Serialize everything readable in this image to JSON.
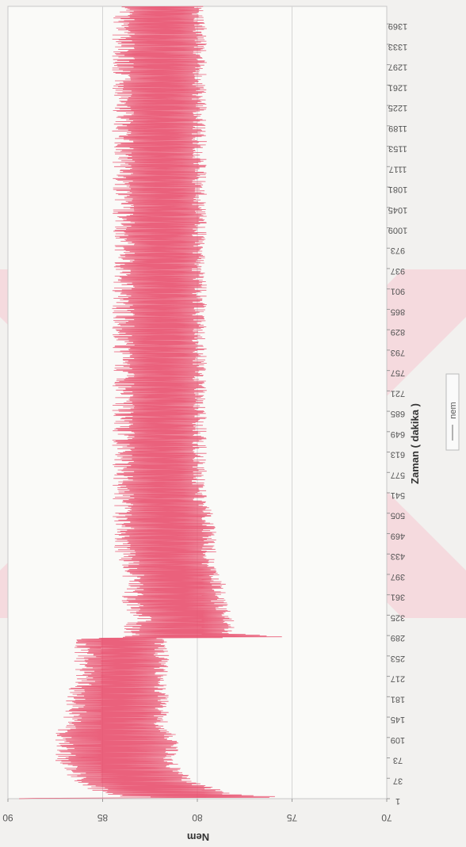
{
  "chart_data": {
    "type": "line",
    "orientation": "rotated-90-clockwise",
    "xlabel": "Zaman ( dakika )",
    "ylabel": "Nem",
    "ylim": [
      70,
      90
    ],
    "yticks": [
      70,
      75,
      80,
      85,
      90
    ],
    "xticks": [
      1,
      37,
      73,
      109,
      145,
      181,
      217,
      253,
      289,
      325,
      361,
      397,
      433,
      469,
      505,
      541,
      577,
      613,
      649,
      685,
      721,
      757,
      793,
      829,
      865,
      901,
      937,
      973,
      1009,
      1045,
      1081,
      1117,
      1153,
      1189,
      1225,
      1261,
      1297,
      1333,
      1369
    ],
    "xlim": [
      1,
      1400
    ],
    "grid": true,
    "legend": {
      "position": "right",
      "entries": [
        "nem"
      ]
    },
    "series": [
      {
        "name": "nem",
        "color": "#e8506e",
        "x": [
          1,
          2,
          3,
          5,
          8,
          12,
          20,
          30,
          45,
          60,
          75,
          90,
          110,
          130,
          150,
          170,
          190,
          210,
          230,
          250,
          270,
          283,
          286,
          288,
          292,
          300,
          320,
          350,
          380,
          410,
          440,
          470,
          500,
          530,
          560,
          590,
          620,
          650,
          680,
          710,
          740,
          770,
          800,
          830,
          860,
          890,
          920,
          950,
          980,
          1010,
          1040,
          1070,
          1100,
          1130,
          1160,
          1190,
          1220,
          1250,
          1280,
          1310,
          1340,
          1370,
          1400
        ],
        "y_min": [
          88,
          77,
          75,
          76,
          78,
          78.5,
          79,
          80,
          80.5,
          81,
          81,
          81,
          81,
          81.5,
          81.5,
          81.5,
          81.5,
          81.5,
          81.5,
          81.5,
          81.5,
          81.5,
          75,
          76,
          78,
          78,
          78,
          78.5,
          78.5,
          79,
          79,
          79,
          79,
          79.5,
          79.5,
          79.5,
          79.5,
          79.5,
          79.5,
          79.5,
          79.5,
          79.5,
          79.5,
          79.5,
          79.5,
          79.5,
          79.5,
          79.5,
          79.5,
          79.5,
          79.5,
          79.5,
          79.5,
          79.5,
          79.5,
          79.5,
          79.5,
          79.5,
          79.5,
          79.5,
          79.5,
          79.5,
          79.5
        ],
        "y_max": [
          90,
          85,
          82,
          84,
          85,
          85.5,
          86,
          86.5,
          87,
          87.5,
          87.5,
          87.5,
          87.5,
          87.5,
          87,
          87,
          87,
          86.5,
          86.5,
          86.5,
          86.5,
          86.5,
          85,
          84,
          84,
          84,
          83.5,
          84,
          84,
          84,
          84.5,
          84.5,
          84.5,
          84.5,
          84.5,
          84.5,
          84.5,
          84.5,
          84.5,
          84.5,
          84.5,
          84.5,
          84.5,
          84.5,
          84.5,
          84.5,
          84.5,
          84.5,
          84.5,
          84.5,
          84.5,
          84.5,
          84.5,
          84.5,
          84.5,
          84.5,
          84.5,
          84.5,
          84.5,
          84.5,
          84.5,
          84.5,
          84.5
        ]
      }
    ]
  }
}
